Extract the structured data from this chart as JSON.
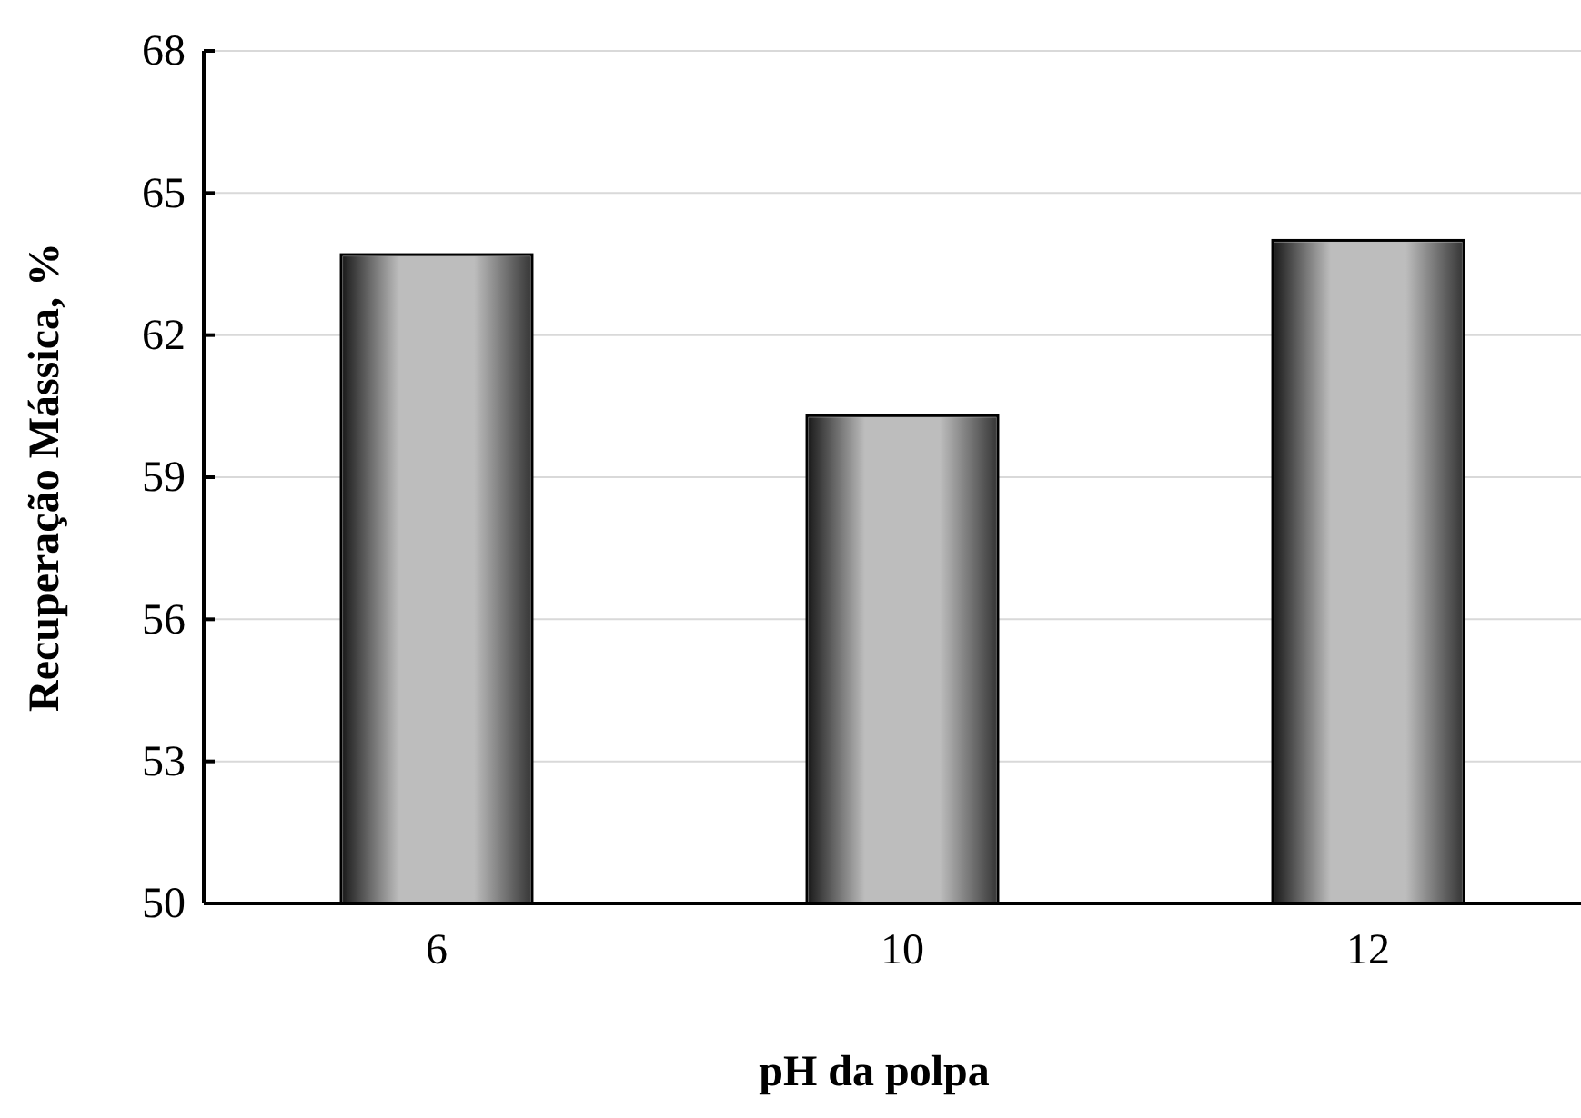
{
  "chart_data": {
    "type": "bar",
    "xlabel": "pH da polpa",
    "ylabel": "Recuperação Mássica, %",
    "categories": [
      "6",
      "10",
      "12"
    ],
    "values": [
      63.7,
      60.3,
      64.0
    ],
    "color": "#bdbdbd",
    "ylim": [
      50,
      68
    ],
    "yticks": [
      50,
      53,
      56,
      59,
      62,
      65,
      68
    ],
    "grid": "y"
  }
}
